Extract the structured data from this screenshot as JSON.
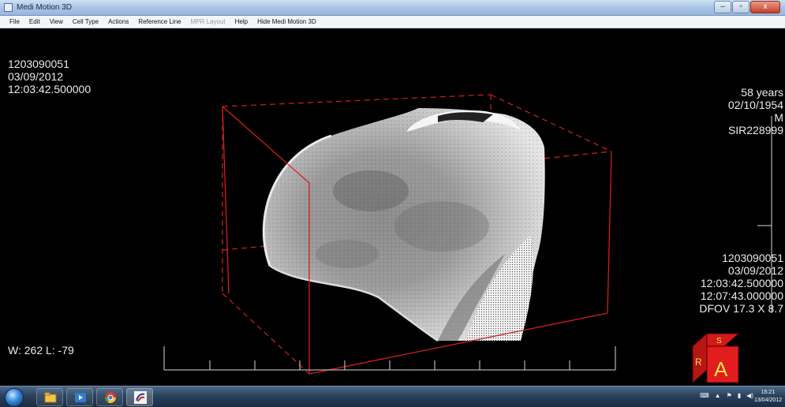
{
  "window": {
    "title": "Medi Motion 3D",
    "controls": {
      "minimize": "–",
      "maximize": "▫",
      "close": "x"
    }
  },
  "menu": [
    {
      "label": "File"
    },
    {
      "label": "Edit"
    },
    {
      "label": "View"
    },
    {
      "label": "Cell Type"
    },
    {
      "label": "Actions"
    },
    {
      "label": "Reference Line"
    },
    {
      "label": "MPR Layout",
      "disabled": true
    },
    {
      "label": "Help"
    },
    {
      "label": "Hide Medi Motion 3D"
    }
  ],
  "overlay": {
    "top_left": {
      "line1": "1203090051",
      "line2": "03/09/2012",
      "line3": "12:03:42.500000"
    },
    "top_right": {
      "age": "58 years",
      "dob": "02/10/1954",
      "sex": "M",
      "id": "SIR228999"
    },
    "bottom_right": {
      "line1": "1203090051",
      "line2": "03/09/2012",
      "line3": "12:03:42.500000",
      "line4": "12:07:43.000000",
      "line5": "DFOV 17.3 X 8.7"
    },
    "window_level": "W: 262 L: -79"
  },
  "orientation_cube": {
    "front": "A",
    "top": "S",
    "side": "R"
  },
  "colors": {
    "bounding_box": "#d21e1e",
    "background": "#000000"
  },
  "taskbar": {
    "icons": [
      "start-orb",
      "explorer-icon",
      "media-player-icon",
      "chrome-icon",
      "medimotion-icon"
    ],
    "clock": {
      "time": "15:21",
      "date": "13/04/2012"
    }
  }
}
